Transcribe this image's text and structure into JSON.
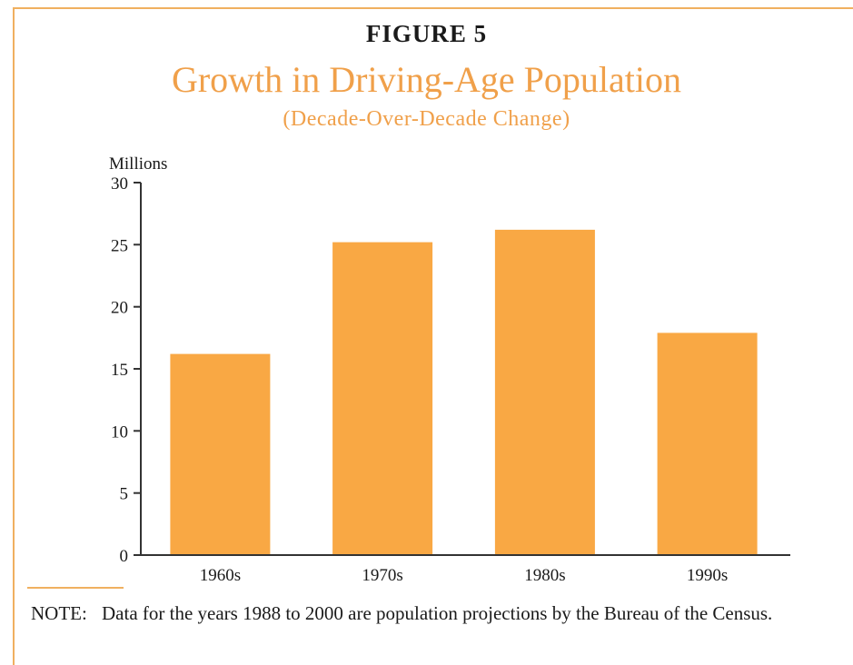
{
  "figure": {
    "number": "FIGURE 5",
    "title": "Growth in Driving-Age Population",
    "subtitle": "(Decade-Over-Decade Change)"
  },
  "chart_data": {
    "type": "bar",
    "title": "Growth in Driving-Age Population",
    "subtitle": "(Decade-Over-Decade Change)",
    "xlabel": "",
    "ylabel": "Millions",
    "categories": [
      "1960s",
      "1970s",
      "1980s",
      "1990s"
    ],
    "values": [
      16.2,
      25.2,
      26.2,
      17.9
    ],
    "ylim": [
      0,
      30
    ],
    "yticks": [
      0,
      5,
      10,
      15,
      20,
      25,
      30
    ],
    "grid": false,
    "legend": "none",
    "bar_color": "#f9a844",
    "axis_color": "#333333"
  },
  "note": {
    "label": "NOTE:",
    "text": "Data for the years 1988 to 2000 are population projections by the Bureau of the Census."
  },
  "colors": {
    "accent": "#f0a04a",
    "frame": "#f0b060"
  }
}
